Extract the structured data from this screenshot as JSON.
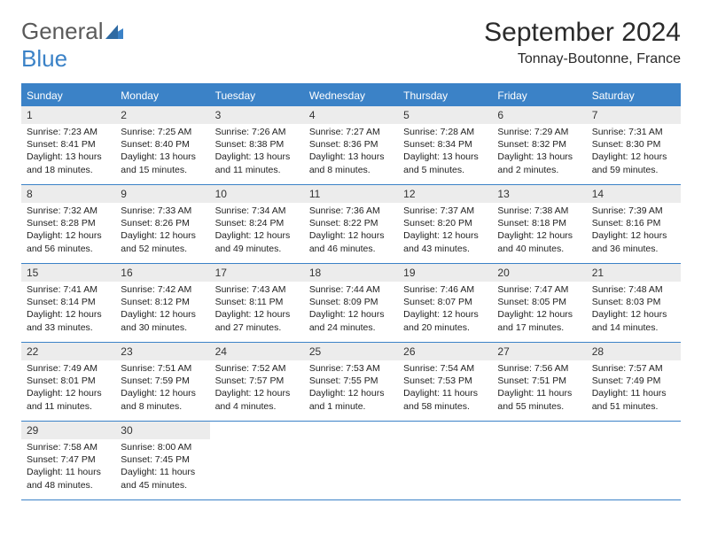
{
  "brand": {
    "line1": "General",
    "line2": "Blue"
  },
  "title": "September 2024",
  "location": "Tonnay-Boutonne, France",
  "colors": {
    "brand_gray": "#5a5a5a",
    "brand_blue": "#3b82c7",
    "header_bg": "#3b82c7",
    "daynum_bg": "#ececec",
    "text": "#222222",
    "page_bg": "#ffffff"
  },
  "typography": {
    "title_fontsize": 30,
    "location_fontsize": 16,
    "dayheader_fontsize": 12,
    "daynum_fontsize": 12,
    "info_fontsize": 10.5
  },
  "layout": {
    "columns": 7,
    "rows": 5,
    "first_day_column": 0
  },
  "day_names": [
    "Sunday",
    "Monday",
    "Tuesday",
    "Wednesday",
    "Thursday",
    "Friday",
    "Saturday"
  ],
  "days": [
    {
      "n": 1,
      "sunrise": "7:23 AM",
      "sunset": "8:41 PM",
      "daylight": "13 hours and 18 minutes."
    },
    {
      "n": 2,
      "sunrise": "7:25 AM",
      "sunset": "8:40 PM",
      "daylight": "13 hours and 15 minutes."
    },
    {
      "n": 3,
      "sunrise": "7:26 AM",
      "sunset": "8:38 PM",
      "daylight": "13 hours and 11 minutes."
    },
    {
      "n": 4,
      "sunrise": "7:27 AM",
      "sunset": "8:36 PM",
      "daylight": "13 hours and 8 minutes."
    },
    {
      "n": 5,
      "sunrise": "7:28 AM",
      "sunset": "8:34 PM",
      "daylight": "13 hours and 5 minutes."
    },
    {
      "n": 6,
      "sunrise": "7:29 AM",
      "sunset": "8:32 PM",
      "daylight": "13 hours and 2 minutes."
    },
    {
      "n": 7,
      "sunrise": "7:31 AM",
      "sunset": "8:30 PM",
      "daylight": "12 hours and 59 minutes."
    },
    {
      "n": 8,
      "sunrise": "7:32 AM",
      "sunset": "8:28 PM",
      "daylight": "12 hours and 56 minutes."
    },
    {
      "n": 9,
      "sunrise": "7:33 AM",
      "sunset": "8:26 PM",
      "daylight": "12 hours and 52 minutes."
    },
    {
      "n": 10,
      "sunrise": "7:34 AM",
      "sunset": "8:24 PM",
      "daylight": "12 hours and 49 minutes."
    },
    {
      "n": 11,
      "sunrise": "7:36 AM",
      "sunset": "8:22 PM",
      "daylight": "12 hours and 46 minutes."
    },
    {
      "n": 12,
      "sunrise": "7:37 AM",
      "sunset": "8:20 PM",
      "daylight": "12 hours and 43 minutes."
    },
    {
      "n": 13,
      "sunrise": "7:38 AM",
      "sunset": "8:18 PM",
      "daylight": "12 hours and 40 minutes."
    },
    {
      "n": 14,
      "sunrise": "7:39 AM",
      "sunset": "8:16 PM",
      "daylight": "12 hours and 36 minutes."
    },
    {
      "n": 15,
      "sunrise": "7:41 AM",
      "sunset": "8:14 PM",
      "daylight": "12 hours and 33 minutes."
    },
    {
      "n": 16,
      "sunrise": "7:42 AM",
      "sunset": "8:12 PM",
      "daylight": "12 hours and 30 minutes."
    },
    {
      "n": 17,
      "sunrise": "7:43 AM",
      "sunset": "8:11 PM",
      "daylight": "12 hours and 27 minutes."
    },
    {
      "n": 18,
      "sunrise": "7:44 AM",
      "sunset": "8:09 PM",
      "daylight": "12 hours and 24 minutes."
    },
    {
      "n": 19,
      "sunrise": "7:46 AM",
      "sunset": "8:07 PM",
      "daylight": "12 hours and 20 minutes."
    },
    {
      "n": 20,
      "sunrise": "7:47 AM",
      "sunset": "8:05 PM",
      "daylight": "12 hours and 17 minutes."
    },
    {
      "n": 21,
      "sunrise": "7:48 AM",
      "sunset": "8:03 PM",
      "daylight": "12 hours and 14 minutes."
    },
    {
      "n": 22,
      "sunrise": "7:49 AM",
      "sunset": "8:01 PM",
      "daylight": "12 hours and 11 minutes."
    },
    {
      "n": 23,
      "sunrise": "7:51 AM",
      "sunset": "7:59 PM",
      "daylight": "12 hours and 8 minutes."
    },
    {
      "n": 24,
      "sunrise": "7:52 AM",
      "sunset": "7:57 PM",
      "daylight": "12 hours and 4 minutes."
    },
    {
      "n": 25,
      "sunrise": "7:53 AM",
      "sunset": "7:55 PM",
      "daylight": "12 hours and 1 minute."
    },
    {
      "n": 26,
      "sunrise": "7:54 AM",
      "sunset": "7:53 PM",
      "daylight": "11 hours and 58 minutes."
    },
    {
      "n": 27,
      "sunrise": "7:56 AM",
      "sunset": "7:51 PM",
      "daylight": "11 hours and 55 minutes."
    },
    {
      "n": 28,
      "sunrise": "7:57 AM",
      "sunset": "7:49 PM",
      "daylight": "11 hours and 51 minutes."
    },
    {
      "n": 29,
      "sunrise": "7:58 AM",
      "sunset": "7:47 PM",
      "daylight": "11 hours and 48 minutes."
    },
    {
      "n": 30,
      "sunrise": "8:00 AM",
      "sunset": "7:45 PM",
      "daylight": "11 hours and 45 minutes."
    }
  ],
  "labels": {
    "sunrise": "Sunrise:",
    "sunset": "Sunset:",
    "daylight": "Daylight:"
  }
}
